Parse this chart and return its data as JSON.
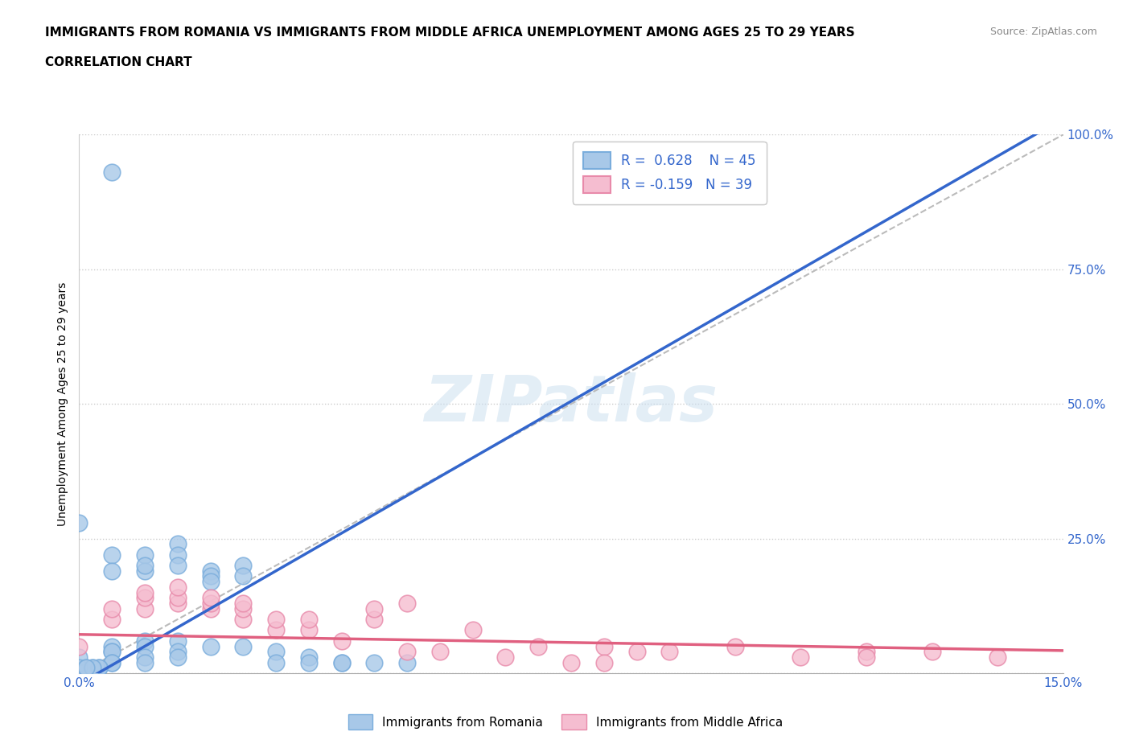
{
  "title_line1": "IMMIGRANTS FROM ROMANIA VS IMMIGRANTS FROM MIDDLE AFRICA UNEMPLOYMENT AMONG AGES 25 TO 29 YEARS",
  "title_line2": "CORRELATION CHART",
  "source": "Source: ZipAtlas.com",
  "ylabel": "Unemployment Among Ages 25 to 29 years",
  "xlim": [
    0.0,
    0.15
  ],
  "ylim": [
    0.0,
    1.0
  ],
  "romania_color": "#a8c8e8",
  "romania_edge_color": "#7aaddc",
  "middle_africa_color": "#f5bdd0",
  "middle_africa_edge_color": "#e88aaa",
  "romania_R": 0.628,
  "romania_N": 45,
  "middle_africa_R": -0.159,
  "middle_africa_N": 39,
  "romania_line_color": "#3366cc",
  "middle_africa_line_color": "#e06080",
  "diagonal_color": "#bbbbbb",
  "watermark": "ZIPatlas",
  "legend_r_color": "#3366cc",
  "romania_scatter_x": [
    0.005,
    0.0,
    0.01,
    0.015,
    0.01,
    0.005,
    0.005,
    0.01,
    0.015,
    0.015,
    0.02,
    0.02,
    0.025,
    0.02,
    0.025,
    0.005,
    0.01,
    0.015,
    0.02,
    0.005,
    0.01,
    0.015,
    0.0,
    0.005,
    0.005,
    0.01,
    0.0,
    0.005,
    0.01,
    0.015,
    0.025,
    0.03,
    0.03,
    0.035,
    0.04,
    0.035,
    0.04,
    0.045,
    0.05,
    0.001,
    0.002,
    0.003,
    0.003,
    0.002,
    0.001
  ],
  "romania_scatter_y": [
    0.93,
    0.28,
    0.22,
    0.24,
    0.19,
    0.22,
    0.19,
    0.2,
    0.22,
    0.2,
    0.19,
    0.18,
    0.2,
    0.17,
    0.18,
    0.05,
    0.06,
    0.06,
    0.05,
    0.04,
    0.05,
    0.04,
    0.03,
    0.04,
    0.02,
    0.03,
    0.01,
    0.02,
    0.02,
    0.03,
    0.05,
    0.04,
    0.02,
    0.03,
    0.02,
    0.02,
    0.02,
    0.02,
    0.02,
    0.01,
    0.01,
    0.01,
    0.01,
    0.01,
    0.01
  ],
  "middle_africa_scatter_x": [
    0.0,
    0.005,
    0.005,
    0.01,
    0.01,
    0.01,
    0.015,
    0.015,
    0.015,
    0.02,
    0.02,
    0.02,
    0.025,
    0.025,
    0.025,
    0.03,
    0.03,
    0.035,
    0.035,
    0.04,
    0.045,
    0.045,
    0.05,
    0.055,
    0.06,
    0.065,
    0.07,
    0.075,
    0.08,
    0.085,
    0.09,
    0.1,
    0.11,
    0.12,
    0.13,
    0.14,
    0.05,
    0.08,
    0.12
  ],
  "middle_africa_scatter_y": [
    0.05,
    0.1,
    0.12,
    0.12,
    0.14,
    0.15,
    0.13,
    0.14,
    0.16,
    0.12,
    0.13,
    0.14,
    0.1,
    0.12,
    0.13,
    0.08,
    0.1,
    0.08,
    0.1,
    0.06,
    0.1,
    0.12,
    0.13,
    0.04,
    0.08,
    0.03,
    0.05,
    0.02,
    0.05,
    0.04,
    0.04,
    0.05,
    0.03,
    0.04,
    0.04,
    0.03,
    0.04,
    0.02,
    0.03
  ],
  "title_fontsize": 11,
  "axis_label_fontsize": 10,
  "tick_fontsize": 11,
  "legend_fontsize": 12
}
